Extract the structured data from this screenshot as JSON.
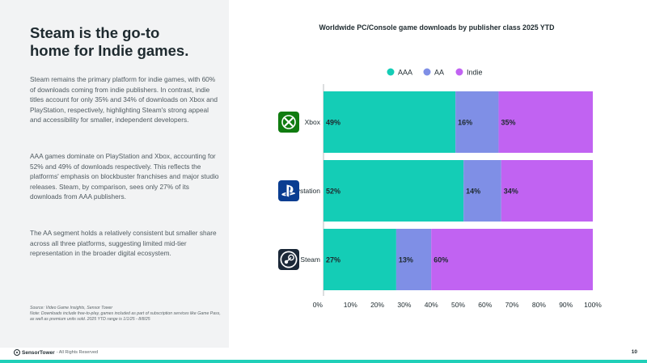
{
  "headline": {
    "line1": "Steam is the go-to",
    "line2": "home for Indie games."
  },
  "paragraphs": [
    "Steam remains the primary platform for  indie games, with 60% of downloads coming from indie publishers. In contrast, indie titles account for only 35% and 34% of downloads on Xbox and PlayStation, respectively, highlighting Steam's strong appeal and accessibility for smaller, independent developers.",
    "AAA games dominate on PlayStation and Xbox, accounting for 52% and 49% of downloads respectively. This reflects the platforms' emphasis on blockbuster franchises and major studio releases. Steam, by comparison, sees only 27% of its downloads from AAA publishers.",
    "The AA segment holds a relatively consistent but smaller share across all three platforms, suggesting limited mid-tier representation in the broader digital ecosystem."
  ],
  "source": "Source: Video Game Insights, Sensor Tower",
  "note": "Note: Downloads include free-to-play, games included as part of subscription services like Game Pass, as well as premium units sold. 2025 YTD range is 1/1/25 - 8/8/25",
  "footer": {
    "brand": "SensorTower",
    "rights": "- All Rights Reserved",
    "page": "10"
  },
  "watermark": "SensorTower",
  "chart_data": {
    "type": "bar",
    "orientation": "horizontal",
    "stacked": true,
    "title": "Worldwide PC/Console game downloads by publisher class 2025 YTD",
    "categories": [
      "Xbox",
      "Playstation",
      "Steam"
    ],
    "category_icons": [
      "xbox-logo",
      "playstation-logo",
      "steam-logo"
    ],
    "series": [
      {
        "name": "AAA",
        "color": "#14cdb6",
        "values": [
          49,
          52,
          27
        ]
      },
      {
        "name": "AA",
        "color": "#7f8fe6",
        "values": [
          16,
          14,
          13
        ]
      },
      {
        "name": "Indie",
        "color": "#c163f2",
        "values": [
          35,
          34,
          60
        ]
      }
    ],
    "value_suffix": "%",
    "xlim": [
      0,
      100
    ],
    "xticks": [
      "0%",
      "10%",
      "20%",
      "30%",
      "40%",
      "50%",
      "60%",
      "70%",
      "80%",
      "90%",
      "100%"
    ],
    "legend_position": "top-center",
    "grid": false
  }
}
